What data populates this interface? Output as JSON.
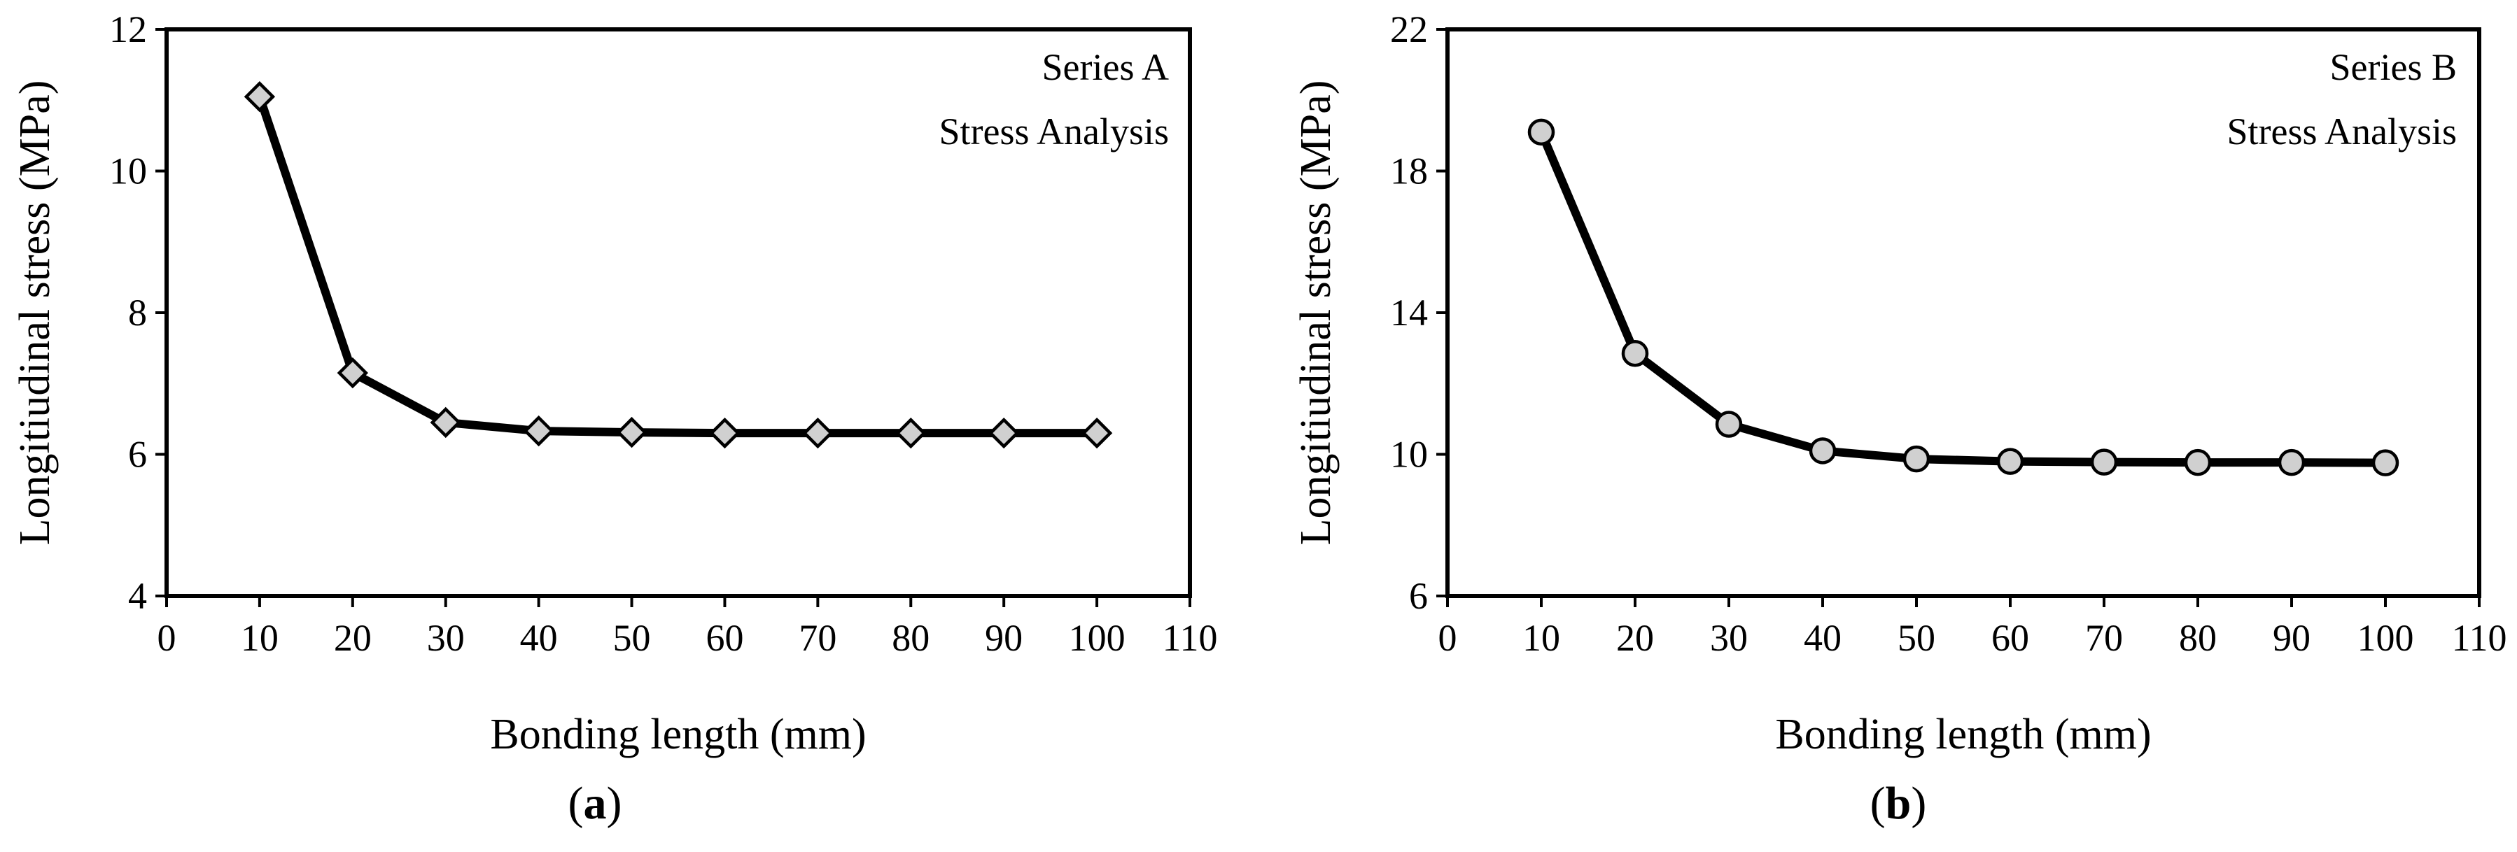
{
  "chart_data": [
    {
      "type": "line",
      "title": "",
      "panel_label": "a",
      "caption_open": "(",
      "caption_close": ")",
      "annotation": [
        "Series A",
        "Stress Analysis"
      ],
      "xlabel": "Bonding length (mm)",
      "ylabel": "Longitiudinal stress (MPa)",
      "xlim": [
        0,
        110
      ],
      "ylim": [
        4,
        12
      ],
      "xticks": [
        0,
        10,
        20,
        30,
        40,
        50,
        60,
        70,
        80,
        90,
        100,
        110
      ],
      "yticks": [
        4,
        6,
        8,
        10,
        12
      ],
      "marker": "diamond",
      "series": [
        {
          "name": "Series A",
          "x": [
            10,
            20,
            30,
            40,
            50,
            60,
            70,
            80,
            90,
            100
          ],
          "values": [
            11.05,
            7.15,
            6.45,
            6.33,
            6.31,
            6.3,
            6.3,
            6.3,
            6.3,
            6.3
          ]
        }
      ]
    },
    {
      "type": "line",
      "title": "",
      "panel_label": "b",
      "caption_open": "(",
      "caption_close": ")",
      "annotation": [
        "Series B",
        "Stress Analysis"
      ],
      "xlabel": "Bonding length (mm)",
      "ylabel": "Longitiudinal stress (MPa)",
      "xlim": [
        0,
        110
      ],
      "ylim": [
        6,
        22
      ],
      "xticks": [
        0,
        10,
        20,
        30,
        40,
        50,
        60,
        70,
        80,
        90,
        100,
        110
      ],
      "yticks": [
        6,
        10,
        14,
        18,
        22
      ],
      "marker": "circle",
      "series": [
        {
          "name": "Series B",
          "x": [
            10,
            20,
            30,
            40,
            50,
            60,
            70,
            80,
            90,
            100
          ],
          "values": [
            19.1,
            12.85,
            10.85,
            10.1,
            9.87,
            9.8,
            9.78,
            9.77,
            9.77,
            9.76
          ]
        }
      ]
    }
  ],
  "colors": {
    "line": "#000000",
    "marker_fill": "#d0d0d0",
    "axis": "#000000",
    "background": "#ffffff"
  }
}
